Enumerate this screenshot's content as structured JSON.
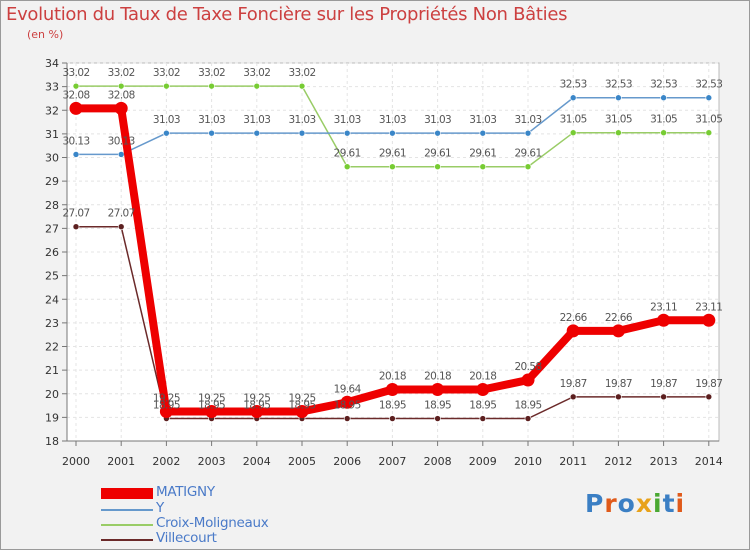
{
  "header": {
    "title": "Evolution du Taux de Taxe Foncière sur les Propriétés Non Bâties",
    "subtitle": "(en %)"
  },
  "logo": {
    "text": "Proxiti",
    "colors": [
      "#3b7fc4",
      "#e05a1a",
      "#3b7fc4",
      "#e8a21a",
      "#4aa832",
      "#3b7fc4",
      "#e05a1a"
    ]
  },
  "chart_data": {
    "type": "line",
    "title": "Evolution du Taux de Taxe Foncière sur les Propriétés Non Bâties",
    "ylabel": "(en %)",
    "xlabel": "",
    "ylim": [
      18,
      34
    ],
    "yticks": [
      18,
      19,
      20,
      21,
      22,
      23,
      24,
      25,
      26,
      27,
      28,
      29,
      30,
      31,
      32,
      33,
      34
    ],
    "categories": [
      "2000",
      "2001",
      "2002",
      "2003",
      "2004",
      "2005",
      "2006",
      "2007",
      "2008",
      "2009",
      "2010",
      "2011",
      "2012",
      "2013",
      "2014"
    ],
    "legend_position": "bottom-left",
    "series": [
      {
        "name": "MATIGNY",
        "color": "#ee0000",
        "bold": true,
        "values": [
          32.08,
          32.08,
          19.25,
          19.25,
          19.25,
          19.25,
          19.64,
          20.18,
          20.18,
          20.18,
          20.58,
          22.66,
          22.66,
          23.11,
          23.11
        ],
        "labels": [
          "32.08",
          "32.08",
          "19.25",
          "19.25",
          "19.25",
          "19.25",
          "19.64",
          "20.18",
          "20.18",
          "20.18",
          "20.58",
          "22.66",
          "22.66",
          "23.11",
          "23.11"
        ]
      },
      {
        "name": "Y",
        "color": "#6699cc",
        "marker": "#3a86c8",
        "values": [
          30.13,
          30.13,
          31.03,
          31.03,
          31.03,
          31.03,
          31.03,
          31.03,
          31.03,
          31.03,
          31.03,
          32.53,
          32.53,
          32.53,
          32.53
        ],
        "labels": [
          "30.13",
          "30.13",
          "31.03",
          "31.03",
          "31.03",
          "31.03",
          "31.03",
          "31.03",
          "31.03",
          "31.03",
          "31.03",
          "32.53",
          "32.53",
          "32.53",
          "32.53"
        ]
      },
      {
        "name": "Croix-Moligneaux",
        "color": "#99cc66",
        "marker": "#77cc33",
        "values": [
          33.02,
          33.02,
          33.02,
          33.02,
          33.02,
          33.02,
          29.61,
          29.61,
          29.61,
          29.61,
          29.61,
          31.05,
          31.05,
          31.05,
          31.05
        ],
        "labels": [
          "33.02",
          "33.02",
          "33.02",
          "33.02",
          "33.02",
          "33.02",
          "29.61",
          "29.61",
          "29.61",
          "29.61",
          "29.61",
          "31.05",
          "31.05",
          "31.05",
          "31.05"
        ]
      },
      {
        "name": "Villecourt",
        "color": "#6b2a2a",
        "marker": "#5c1f1f",
        "values": [
          27.07,
          27.07,
          18.95,
          18.95,
          18.95,
          18.95,
          18.95,
          18.95,
          18.95,
          18.95,
          18.95,
          19.87,
          19.87,
          19.87,
          19.87
        ],
        "labels": [
          "27.07",
          "27.07",
          "18.95",
          "18.95",
          "18.95",
          "18.95",
          "18.95",
          "18.95",
          "18.95",
          "18.95",
          "18.95",
          "19.87",
          "19.87",
          "19.87",
          "19.87"
        ]
      }
    ]
  }
}
